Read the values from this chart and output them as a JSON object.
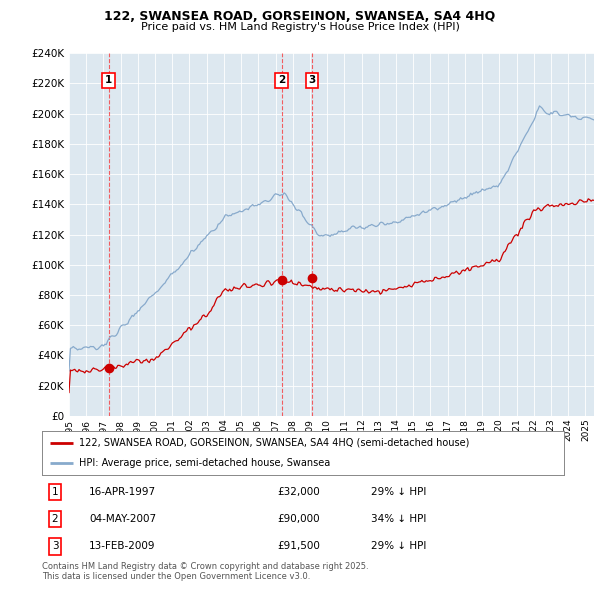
{
  "title1": "122, SWANSEA ROAD, GORSEINON, SWANSEA, SA4 4HQ",
  "title2": "Price paid vs. HM Land Registry's House Price Index (HPI)",
  "legend_house": "122, SWANSEA ROAD, GORSEINON, SWANSEA, SA4 4HQ (semi-detached house)",
  "legend_hpi": "HPI: Average price, semi-detached house, Swansea",
  "footnote": "Contains HM Land Registry data © Crown copyright and database right 2025.\nThis data is licensed under the Open Government Licence v3.0.",
  "house_color": "#cc0000",
  "hpi_color": "#88aacc",
  "background_color": "#dde8f0",
  "transactions": [
    {
      "label": "1",
      "date": "16-APR-1997",
      "price": "£32,000",
      "pct": "29% ↓ HPI",
      "year": 1997.3
    },
    {
      "label": "2",
      "date": "04-MAY-2007",
      "price": "£90,000",
      "pct": "34% ↓ HPI",
      "year": 2007.35
    },
    {
      "label": "3",
      "date": "13-FEB-2009",
      "price": "£91,500",
      "pct": "29% ↓ HPI",
      "year": 2009.12
    }
  ],
  "transaction_prices": [
    32000,
    90000,
    91500
  ],
  "ylim": [
    0,
    240000
  ],
  "yticks": [
    0,
    20000,
    40000,
    60000,
    80000,
    100000,
    120000,
    140000,
    160000,
    180000,
    200000,
    220000,
    240000
  ]
}
